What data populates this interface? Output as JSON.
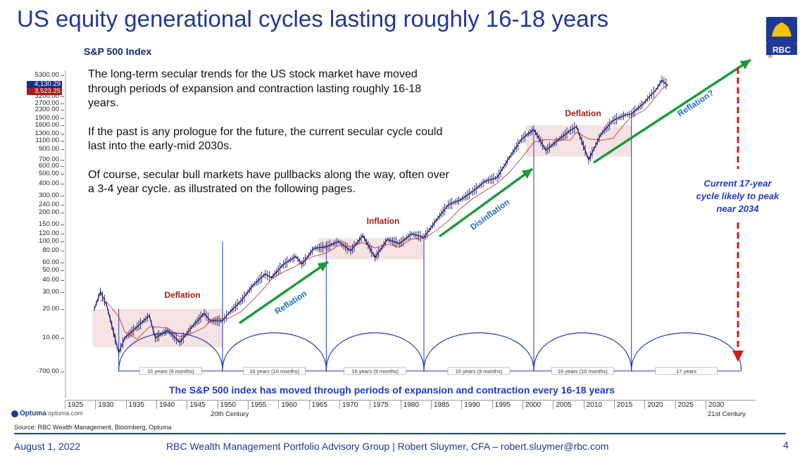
{
  "title": "US equity generational cycles lasting roughly 16-18 years",
  "subtitle": "S&P 500 Index",
  "logo_text": "RBC",
  "body_paragraphs": [
    "The long-term secular trends for the US stock market have moved through periods of expansion and contraction lasting roughly 16-18 years.",
    "If the past is any prologue for the future, the current secular cycle could last into the early-mid 2030s.",
    "Of course, secular bull markets have pullbacks along the way, often over a 3-4 year cycle. as illustrated on the following pages."
  ],
  "side_note": "Current 17-year cycle likely to peak near 2034",
  "bottom_caption": "The S&P 500 index has moved through periods of expansion and contraction every 16-18 years",
  "price_boxes": [
    {
      "text": "4,130.29",
      "color": "#1a2b8f"
    },
    {
      "text": "3,523.25",
      "color": "#a11b1b"
    }
  ],
  "y_tick_labels": [
    "5300.00",
    "3200.00",
    "2700.00",
    "2300.00",
    "1900.00",
    "1600.00",
    "1300.00",
    "1100.00",
    "900.00",
    "700.00",
    "600.00",
    "500.00",
    "400.00",
    "300.00",
    "240.00",
    "200.00",
    "150.00",
    "120.00",
    "100.00",
    "80.00",
    "60.00",
    "50.00",
    "40.00",
    "30.00",
    "20.00",
    "10.00",
    "-700.00"
  ],
  "x_tick_labels": [
    "1925",
    "1930",
    "1935",
    "1940",
    "1945",
    "1950",
    "1955",
    "1960",
    "1965",
    "1970",
    "1975",
    "1980",
    "1985",
    "1990",
    "1995",
    "2000",
    "2005",
    "2010",
    "2015",
    "2020",
    "2025",
    "2030"
  ],
  "century_labels": [
    "20th Century",
    "21st Century"
  ],
  "phase_labels": [
    {
      "text": "Deflation",
      "color": "#a11b1b"
    },
    {
      "text": "Inflation",
      "color": "#a11b1b"
    },
    {
      "text": "Deflation",
      "color": "#a11b1b"
    },
    {
      "text": "Reflation",
      "color": "#1f6fc0"
    },
    {
      "text": "Disinflation",
      "color": "#1f6fc0"
    },
    {
      "text": "Reflation?",
      "color": "#1f6fc0"
    }
  ],
  "cycle_labels": [
    "16 years (9 months)",
    "16 years (10 months)",
    "16 years (9 months)",
    "16 years (9 months)",
    "16 years (10 months)",
    "17 years"
  ],
  "chart_data": {
    "type": "line",
    "title": "S&P 500 Index",
    "y_scale": "log",
    "x": [
      1928,
      1929,
      1930,
      1932,
      1933,
      1935,
      1937,
      1938,
      1940,
      1942,
      1944,
      1946,
      1947,
      1949,
      1950,
      1952,
      1954,
      1956,
      1957,
      1959,
      1961,
      1962,
      1964,
      1966,
      1968,
      1970,
      1972,
      1974,
      1976,
      1978,
      1980,
      1982,
      1984,
      1986,
      1988,
      1990,
      1992,
      1994,
      1996,
      1998,
      2000,
      2002,
      2004,
      2006,
      2007,
      2009,
      2011,
      2013,
      2015,
      2016,
      2018,
      2019,
      2020,
      2021,
      2022
    ],
    "y": [
      20,
      30,
      22,
      7,
      10,
      13,
      17,
      10,
      12,
      9,
      13,
      18,
      15,
      15,
      18,
      24,
      35,
      46,
      42,
      58,
      70,
      58,
      85,
      88,
      100,
      80,
      115,
      68,
      105,
      95,
      120,
      110,
      165,
      240,
      270,
      330,
      420,
      460,
      740,
      1150,
      1450,
      880,
      1130,
      1420,
      1550,
      700,
      1290,
      1800,
      2050,
      2100,
      2700,
      3200,
      3700,
      4700,
      4130
    ],
    "trend_periods": [
      {
        "label": "Deflation",
        "start": 1929,
        "end": 1949,
        "low": 8,
        "high": 20
      },
      {
        "label": "Inflation",
        "start": 1966,
        "end": 1982,
        "low": 65,
        "high": 108
      },
      {
        "label": "Deflation",
        "start": 2000,
        "end": 2016,
        "low": 760,
        "high": 1600
      }
    ],
    "cycle_lows": [
      1932,
      1949,
      1966,
      1982,
      2000,
      2016,
      2034
    ],
    "xlim": [
      1921,
      2035
    ]
  }
}
